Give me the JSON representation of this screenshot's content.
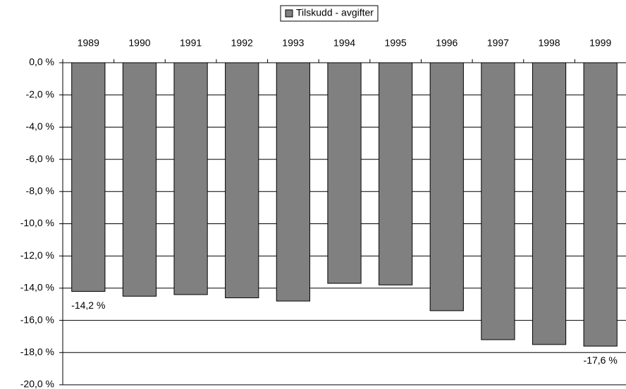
{
  "chart_data": {
    "type": "bar",
    "categories": [
      "1989",
      "1990",
      "1991",
      "1992",
      "1993",
      "1994",
      "1995",
      "1996",
      "1997",
      "1998",
      "1999"
    ],
    "series": [
      {
        "name": "Tilskudd - avgifter",
        "color": "#808080",
        "values": [
          -14.2,
          -14.5,
          -14.4,
          -14.6,
          -14.8,
          -13.7,
          -13.8,
          -15.4,
          -17.2,
          -17.5,
          -17.6
        ],
        "value_labels": [
          "-14,2 %",
          null,
          null,
          null,
          null,
          null,
          null,
          null,
          null,
          null,
          "-17,6 %"
        ]
      }
    ],
    "ylim": [
      -20,
      0
    ],
    "yticks": [
      {
        "value": 0,
        "label": "0,0 %"
      },
      {
        "value": -2,
        "label": "-2,0 %"
      },
      {
        "value": -4,
        "label": "-4,0 %"
      },
      {
        "value": -6,
        "label": "-6,0 %"
      },
      {
        "value": -8,
        "label": "-8,0 %"
      },
      {
        "value": -10,
        "label": "-10,0 %"
      },
      {
        "value": -12,
        "label": "-12,0 %"
      },
      {
        "value": -14,
        "label": "-14,0 %"
      },
      {
        "value": -16,
        "label": "-16,0 %"
      },
      {
        "value": -18,
        "label": "-18,0 %"
      },
      {
        "value": -20,
        "label": "-20,0 %"
      }
    ],
    "grid": true,
    "legend": "top"
  }
}
